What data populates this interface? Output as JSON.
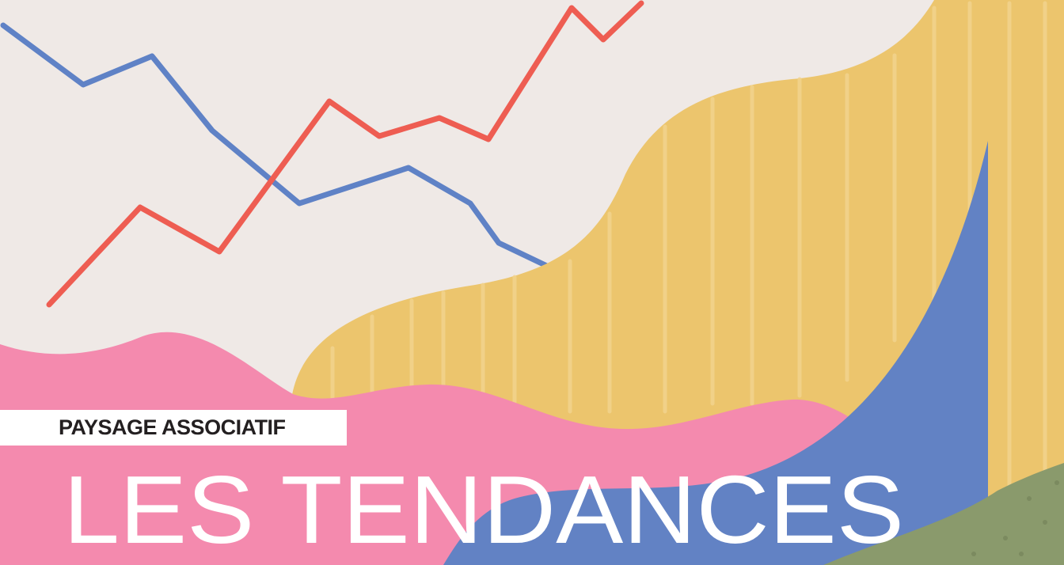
{
  "cover": {
    "kicker": "PAYSAGE ASSOCIATIF",
    "title": "LES TENDANCES"
  },
  "colors": {
    "background": "#efe9e6",
    "blue_line": "#5f82c6",
    "red_line": "#ee5d52",
    "yellow": "#ecc56d",
    "pink": "#f48aae",
    "blue_shape": "#6282c4",
    "green": "#8a9a6c"
  }
}
